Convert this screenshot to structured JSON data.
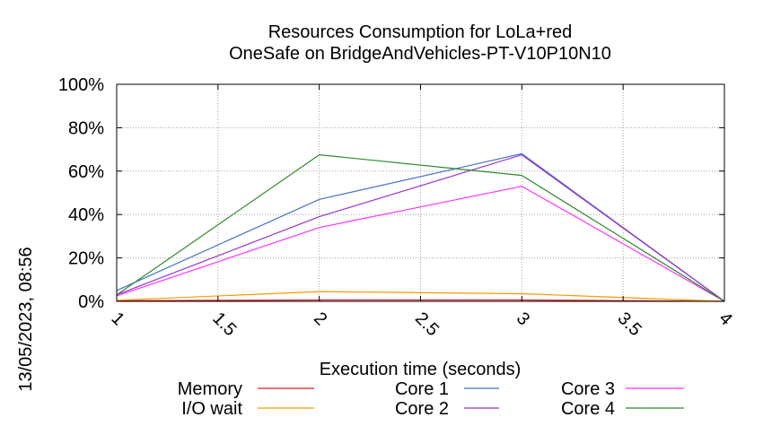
{
  "chart_data": {
    "type": "line",
    "title_line1": "Resources Consumption for LoLa+red",
    "title_line2": "OneSafe on BridgeAndVehicles-PT-V10P10N10",
    "xlabel": "Execution time (seconds)",
    "ylabel": "",
    "side_label": "13/05/2023, 08:56",
    "xlim": [
      1,
      4
    ],
    "ylim": [
      0,
      100
    ],
    "x_ticks": [
      {
        "value": 1,
        "label": "1"
      },
      {
        "value": 1.5,
        "label": "1.5"
      },
      {
        "value": 2,
        "label": "2"
      },
      {
        "value": 2.5,
        "label": "2.5"
      },
      {
        "value": 3,
        "label": "3"
      },
      {
        "value": 3.5,
        "label": "3.5"
      },
      {
        "value": 4,
        "label": "4"
      }
    ],
    "y_ticks": [
      {
        "value": 0,
        "label": "0%"
      },
      {
        "value": 20,
        "label": "20%"
      },
      {
        "value": 40,
        "label": "40%"
      },
      {
        "value": 60,
        "label": "60%"
      },
      {
        "value": 80,
        "label": "80%"
      },
      {
        "value": 100,
        "label": "100%"
      }
    ],
    "grid": true,
    "x": [
      1,
      2,
      3,
      4
    ],
    "series": [
      {
        "name": "Memory",
        "color": "#e41a1c",
        "values": [
          0.3,
          0.6,
          0.6,
          0
        ]
      },
      {
        "name": "I/O wait",
        "color": "#ff9900",
        "values": [
          0.5,
          4.5,
          3.5,
          0
        ]
      },
      {
        "name": "Core 1",
        "color": "#4472c4",
        "values": [
          5,
          47,
          68,
          0
        ]
      },
      {
        "name": "Core 2",
        "color": "#9933cc",
        "values": [
          3,
          39,
          67.5,
          0
        ]
      },
      {
        "name": "Core 3",
        "color": "#ff33ff",
        "values": [
          2.5,
          34,
          53,
          0
        ]
      },
      {
        "name": "Core 4",
        "color": "#2e8b2e",
        "values": [
          3,
          67.5,
          58,
          0
        ]
      }
    ],
    "legend_position": "bottom"
  }
}
